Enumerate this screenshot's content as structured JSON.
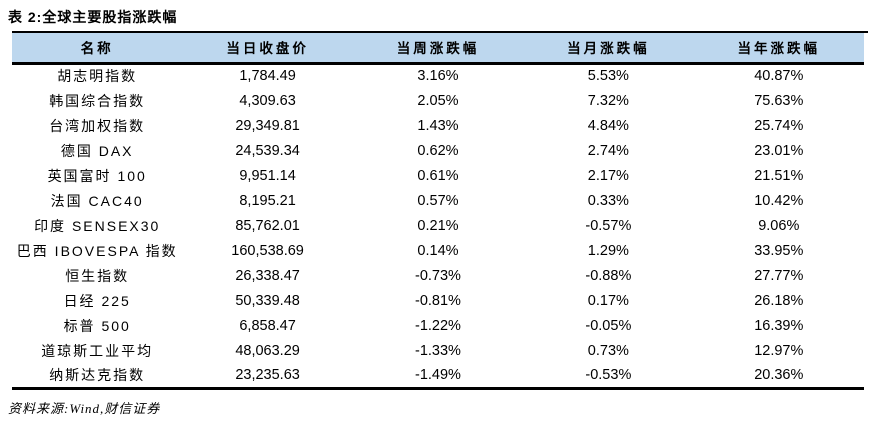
{
  "title": "表 2:全球主要股指涨跌幅",
  "table": {
    "columns": [
      "名称",
      "当日收盘价",
      "当周涨跌幅",
      "当月涨跌幅",
      "当年涨跌幅"
    ],
    "column_keys": [
      "name",
      "close",
      "weekly",
      "monthly",
      "yearly"
    ],
    "rows": [
      [
        "胡志明指数",
        "1,784.49",
        "3.16%",
        "5.53%",
        "40.87%"
      ],
      [
        "韩国综合指数",
        "4,309.63",
        "2.05%",
        "7.32%",
        "75.63%"
      ],
      [
        "台湾加权指数",
        "29,349.81",
        "1.43%",
        "4.84%",
        "25.74%"
      ],
      [
        "德国 DAX",
        "24,539.34",
        "0.62%",
        "2.74%",
        "23.01%"
      ],
      [
        "英国富时 100",
        "9,951.14",
        "0.61%",
        "2.17%",
        "21.51%"
      ],
      [
        "法国 CAC40",
        "8,195.21",
        "0.57%",
        "0.33%",
        "10.42%"
      ],
      [
        "印度 SENSEX30",
        "85,762.01",
        "0.21%",
        "-0.57%",
        "9.06%"
      ],
      [
        "巴西 IBOVESPA 指数",
        "160,538.69",
        "0.14%",
        "1.29%",
        "33.95%"
      ],
      [
        "恒生指数",
        "26,338.47",
        "-0.73%",
        "-0.88%",
        "27.77%"
      ],
      [
        "日经 225",
        "50,339.48",
        "-0.81%",
        "0.17%",
        "26.18%"
      ],
      [
        "标普 500",
        "6,858.47",
        "-1.22%",
        "-0.05%",
        "16.39%"
      ],
      [
        "道琼斯工业平均",
        "48,063.29",
        "-1.33%",
        "0.73%",
        "12.97%"
      ],
      [
        "纳斯达克指数",
        "23,235.63",
        "-1.49%",
        "-0.53%",
        "20.36%"
      ]
    ]
  },
  "footer": {
    "source": "资料来源:Wind,财信证券"
  },
  "colors": {
    "header_bg": "#bdd7ee",
    "rule": "#000000",
    "text": "#000000"
  }
}
